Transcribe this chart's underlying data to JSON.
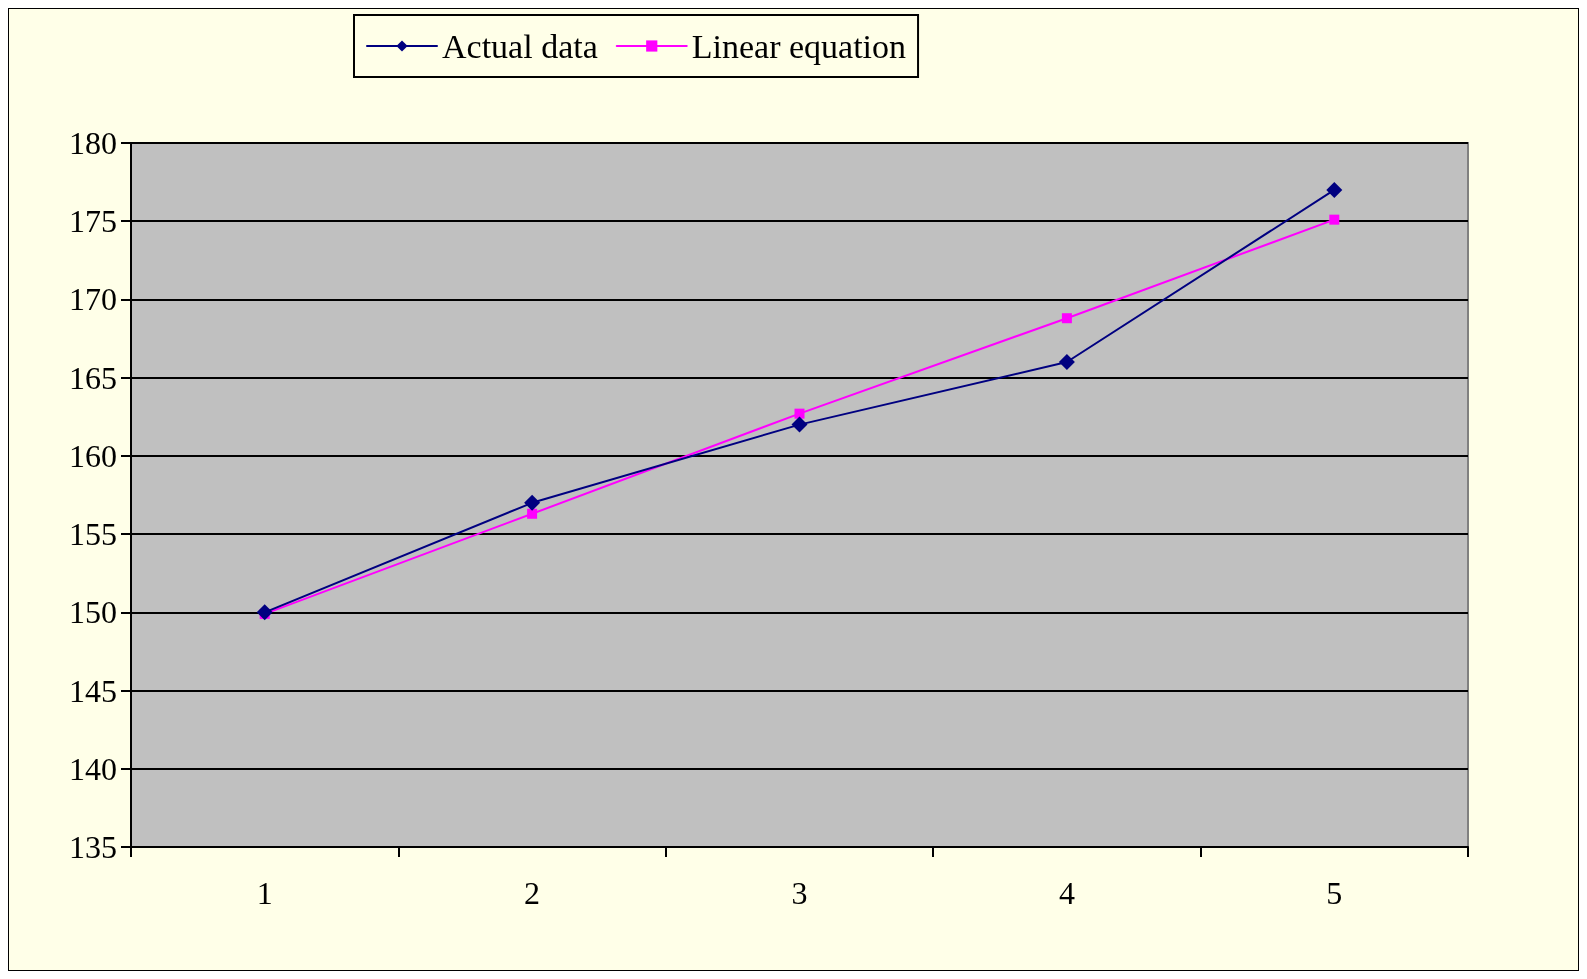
{
  "chart_data": {
    "type": "line",
    "categories": [
      "1",
      "2",
      "3",
      "4",
      "5"
    ],
    "series": [
      {
        "name": "Actual data",
        "color": "#000080",
        "marker": "diamond",
        "values": [
          150,
          157,
          162,
          166,
          177
        ]
      },
      {
        "name": "Linear equation",
        "color": "#ff00ff",
        "marker": "square",
        "values": [
          149.9,
          156.3,
          162.7,
          168.8,
          175.1
        ]
      }
    ],
    "ylim": [
      135,
      180
    ],
    "yticks": [
      135,
      140,
      145,
      150,
      155,
      160,
      165,
      170,
      175,
      180
    ],
    "grid": "y",
    "legend": "top",
    "line_style": "solid"
  }
}
